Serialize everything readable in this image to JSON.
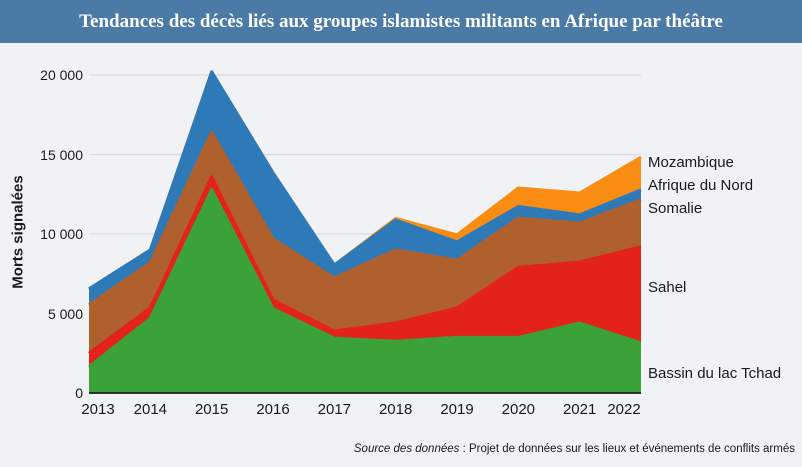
{
  "header": {
    "title": "Tendances des décès liés aux groupes islamistes militants en Afrique par théâtre"
  },
  "colors": {
    "title_bar": "#4a7aa5",
    "background": "#f0f2f5",
    "gridline": "#d8dbe0",
    "axis_line": "#1f1f1f",
    "text": "#1a1a1a"
  },
  "chart_data": {
    "type": "area",
    "stacked": true,
    "ylabel": "Morts signalées",
    "categories": [
      "2013",
      "2014",
      "2015",
      "2016",
      "2017",
      "2018",
      "2019",
      "2020",
      "2021",
      "2022"
    ],
    "ylim": [
      0,
      20000
    ],
    "grid": true,
    "legend_position": "right",
    "yticks": [
      {
        "value": 0,
        "label": "0"
      },
      {
        "value": 5000,
        "label": "5 000"
      },
      {
        "value": 10000,
        "label": "10 000"
      },
      {
        "value": 15000,
        "label": "15 000"
      },
      {
        "value": 20000,
        "label": "20 000"
      }
    ],
    "series": [
      {
        "name": "Bassin du lac Tchad",
        "color": "#3ba139",
        "values": [
          1650,
          4700,
          12800,
          5300,
          3450,
          3250,
          3500,
          3500,
          4400,
          3150
        ]
      },
      {
        "name": "Sahel",
        "color": "#e3231a",
        "values": [
          850,
          650,
          800,
          550,
          450,
          1150,
          1850,
          4400,
          3840,
          6050
        ]
      },
      {
        "name": "Somalie",
        "color": "#b0602d",
        "values": [
          3050,
          2850,
          2800,
          3850,
          3330,
          4600,
          3000,
          3100,
          2450,
          2950
        ]
      },
      {
        "name": "Afrique du Nord",
        "color": "#2e7ab9",
        "values": [
          1000,
          800,
          3800,
          4150,
          820,
          1880,
          1150,
          730,
          510,
          630
        ]
      },
      {
        "name": "Mozambique",
        "color": "#f98d13",
        "values": [
          0,
          0,
          0,
          0,
          0,
          100,
          450,
          1160,
          1380,
          2050
        ]
      }
    ]
  },
  "footer": {
    "source_label": "Source des données",
    "source_text": " : Projet de données sur les lieux et événements de conflits armés"
  }
}
